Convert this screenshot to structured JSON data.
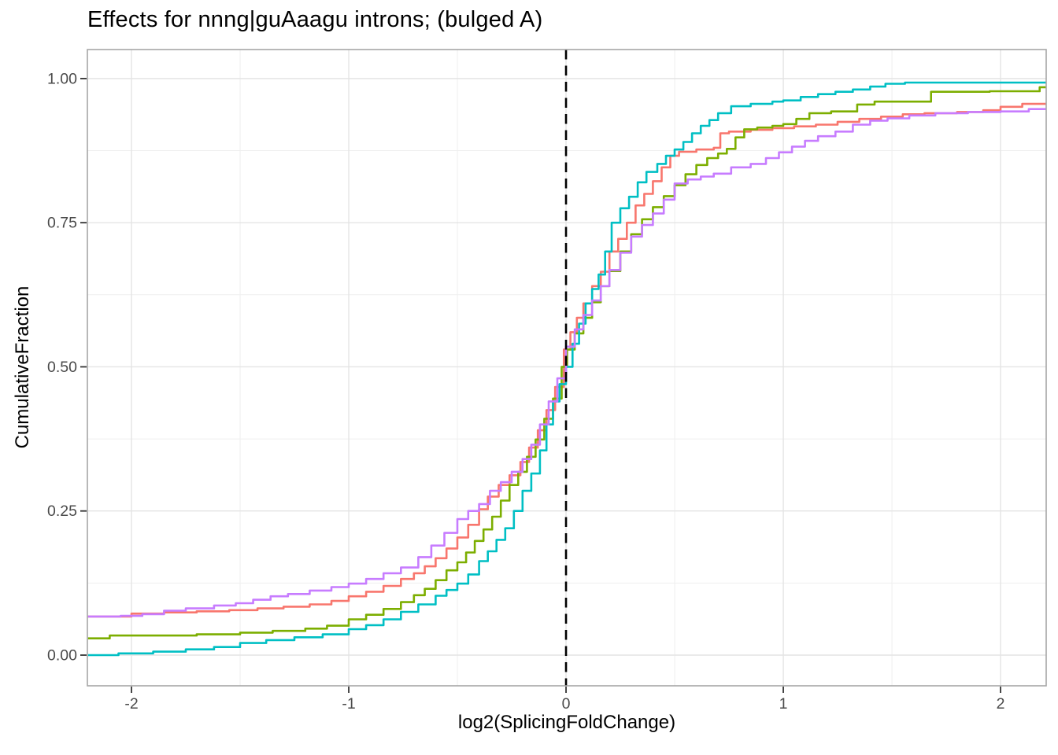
{
  "title": "Effects for nnng|guAaagu introns; (bulged A)",
  "chart_data": {
    "type": "line",
    "subtype": "ecdf_step",
    "title": "Effects for nnng|guAaagu introns; (bulged A)",
    "xlabel": "log2(SplicingFoldChange)",
    "ylabel": "CumulativeFraction",
    "xlim": [
      -2.203,
      2.21
    ],
    "ylim": [
      -0.0532,
      1.0503
    ],
    "grid": true,
    "legend_position": "none",
    "x_ticks": {
      "values": [
        -2,
        -1,
        0,
        1,
        2
      ],
      "labels": [
        "-2",
        "-1",
        "0",
        "1",
        "2"
      ]
    },
    "y_ticks": {
      "values": [
        0,
        0.25,
        0.5,
        0.75,
        1
      ],
      "labels": [
        "0.00",
        "0.25",
        "0.50",
        "0.75",
        "1.00"
      ]
    },
    "x_minor": [
      -1.5,
      -0.5,
      0.5,
      1.5
    ],
    "y_minor": [
      0.125,
      0.375,
      0.625,
      0.875
    ],
    "vline": {
      "x": 0,
      "style": "dashed",
      "color": "#000000"
    },
    "series": [
      {
        "name": "salmon",
        "color": "#F8766D",
        "points": [
          [
            -2.2,
            0.067
          ],
          [
            -2.0,
            0.072
          ],
          [
            -1.85,
            0.074
          ],
          [
            -1.7,
            0.076
          ],
          [
            -1.55,
            0.078
          ],
          [
            -1.42,
            0.081
          ],
          [
            -1.3,
            0.084
          ],
          [
            -1.18,
            0.088
          ],
          [
            -1.08,
            0.094
          ],
          [
            -1.0,
            0.102
          ],
          [
            -0.92,
            0.11
          ],
          [
            -0.84,
            0.12
          ],
          [
            -0.76,
            0.132
          ],
          [
            -0.7,
            0.142
          ],
          [
            -0.65,
            0.154
          ],
          [
            -0.6,
            0.168
          ],
          [
            -0.55,
            0.185
          ],
          [
            -0.5,
            0.204
          ],
          [
            -0.45,
            0.226
          ],
          [
            -0.4,
            0.253
          ],
          [
            -0.36,
            0.275
          ],
          [
            -0.31,
            0.295
          ],
          [
            -0.26,
            0.312
          ],
          [
            -0.21,
            0.335
          ],
          [
            -0.17,
            0.36
          ],
          [
            -0.13,
            0.39
          ],
          [
            -0.09,
            0.425
          ],
          [
            -0.05,
            0.465
          ],
          [
            -0.01,
            0.53
          ],
          [
            0.02,
            0.56
          ],
          [
            0.05,
            0.585
          ],
          [
            0.08,
            0.61
          ],
          [
            0.12,
            0.64
          ],
          [
            0.16,
            0.665
          ],
          [
            0.2,
            0.7
          ],
          [
            0.24,
            0.722
          ],
          [
            0.28,
            0.75
          ],
          [
            0.32,
            0.78
          ],
          [
            0.36,
            0.8
          ],
          [
            0.4,
            0.822
          ],
          [
            0.44,
            0.846
          ],
          [
            0.48,
            0.866
          ],
          [
            0.52,
            0.873
          ],
          [
            0.6,
            0.877
          ],
          [
            0.68,
            0.88
          ],
          [
            0.71,
            0.905
          ],
          [
            0.75,
            0.908
          ],
          [
            0.85,
            0.911
          ],
          [
            0.95,
            0.914
          ],
          [
            1.05,
            0.917
          ],
          [
            1.15,
            0.92
          ],
          [
            1.25,
            0.925
          ],
          [
            1.35,
            0.93
          ],
          [
            1.45,
            0.934
          ],
          [
            1.55,
            0.938
          ],
          [
            1.65,
            0.94
          ],
          [
            1.8,
            0.942
          ],
          [
            1.92,
            0.945
          ],
          [
            2.0,
            0.951
          ],
          [
            2.1,
            0.956
          ],
          [
            2.21,
            0.957
          ]
        ]
      },
      {
        "name": "green",
        "color": "#7CAE00",
        "points": [
          [
            -2.2,
            0.029
          ],
          [
            -2.1,
            0.034
          ],
          [
            -1.7,
            0.036
          ],
          [
            -1.5,
            0.039
          ],
          [
            -1.35,
            0.042
          ],
          [
            -1.2,
            0.046
          ],
          [
            -1.1,
            0.051
          ],
          [
            -1.0,
            0.062
          ],
          [
            -0.92,
            0.07
          ],
          [
            -0.84,
            0.08
          ],
          [
            -0.76,
            0.092
          ],
          [
            -0.7,
            0.104
          ],
          [
            -0.65,
            0.115
          ],
          [
            -0.6,
            0.13
          ],
          [
            -0.55,
            0.147
          ],
          [
            -0.5,
            0.161
          ],
          [
            -0.46,
            0.178
          ],
          [
            -0.42,
            0.198
          ],
          [
            -0.38,
            0.218
          ],
          [
            -0.34,
            0.24
          ],
          [
            -0.3,
            0.268
          ],
          [
            -0.26,
            0.295
          ],
          [
            -0.22,
            0.318
          ],
          [
            -0.18,
            0.344
          ],
          [
            -0.14,
            0.374
          ],
          [
            -0.1,
            0.41
          ],
          [
            -0.06,
            0.445
          ],
          [
            -0.02,
            0.5
          ],
          [
            0.005,
            0.53
          ],
          [
            0.04,
            0.558
          ],
          [
            0.08,
            0.585
          ],
          [
            0.12,
            0.612
          ],
          [
            0.16,
            0.64
          ],
          [
            0.2,
            0.666
          ],
          [
            0.25,
            0.7
          ],
          [
            0.3,
            0.73
          ],
          [
            0.35,
            0.756
          ],
          [
            0.4,
            0.777
          ],
          [
            0.45,
            0.796
          ],
          [
            0.5,
            0.815
          ],
          [
            0.55,
            0.834
          ],
          [
            0.6,
            0.85
          ],
          [
            0.65,
            0.862
          ],
          [
            0.7,
            0.87
          ],
          [
            0.74,
            0.878
          ],
          [
            0.78,
            0.898
          ],
          [
            0.82,
            0.912
          ],
          [
            0.88,
            0.915
          ],
          [
            0.95,
            0.918
          ],
          [
            1.0,
            0.921
          ],
          [
            1.06,
            0.93
          ],
          [
            1.12,
            0.94
          ],
          [
            1.22,
            0.943
          ],
          [
            1.34,
            0.955
          ],
          [
            1.42,
            0.96
          ],
          [
            1.68,
            0.977
          ],
          [
            1.95,
            0.978
          ],
          [
            2.18,
            0.985
          ],
          [
            2.21,
            0.985
          ]
        ]
      },
      {
        "name": "teal",
        "color": "#00BFC4",
        "points": [
          [
            -2.2,
            0.0
          ],
          [
            -2.06,
            0.003
          ],
          [
            -1.9,
            0.006
          ],
          [
            -1.75,
            0.01
          ],
          [
            -1.62,
            0.014
          ],
          [
            -1.5,
            0.021
          ],
          [
            -1.38,
            0.026
          ],
          [
            -1.25,
            0.031
          ],
          [
            -1.12,
            0.036
          ],
          [
            -1.0,
            0.045
          ],
          [
            -0.92,
            0.052
          ],
          [
            -0.84,
            0.062
          ],
          [
            -0.76,
            0.075
          ],
          [
            -0.68,
            0.088
          ],
          [
            -0.6,
            0.103
          ],
          [
            -0.55,
            0.113
          ],
          [
            -0.5,
            0.124
          ],
          [
            -0.45,
            0.14
          ],
          [
            -0.4,
            0.163
          ],
          [
            -0.36,
            0.18
          ],
          [
            -0.32,
            0.2
          ],
          [
            -0.28,
            0.22
          ],
          [
            -0.24,
            0.25
          ],
          [
            -0.2,
            0.285
          ],
          [
            -0.16,
            0.315
          ],
          [
            -0.12,
            0.355
          ],
          [
            -0.09,
            0.4
          ],
          [
            -0.06,
            0.44
          ],
          [
            -0.03,
            0.47
          ],
          [
            0.0,
            0.5
          ],
          [
            0.03,
            0.54
          ],
          [
            0.06,
            0.575
          ],
          [
            0.09,
            0.61
          ],
          [
            0.12,
            0.635
          ],
          [
            0.15,
            0.66
          ],
          [
            0.18,
            0.7
          ],
          [
            0.21,
            0.75
          ],
          [
            0.25,
            0.775
          ],
          [
            0.29,
            0.795
          ],
          [
            0.33,
            0.82
          ],
          [
            0.37,
            0.838
          ],
          [
            0.42,
            0.852
          ],
          [
            0.46,
            0.866
          ],
          [
            0.5,
            0.877
          ],
          [
            0.54,
            0.89
          ],
          [
            0.58,
            0.905
          ],
          [
            0.62,
            0.918
          ],
          [
            0.66,
            0.928
          ],
          [
            0.7,
            0.94
          ],
          [
            0.76,
            0.952
          ],
          [
            0.85,
            0.956
          ],
          [
            0.95,
            0.96
          ],
          [
            1.0,
            0.962
          ],
          [
            1.08,
            0.968
          ],
          [
            1.16,
            0.973
          ],
          [
            1.24,
            0.977
          ],
          [
            1.32,
            0.981
          ],
          [
            1.4,
            0.986
          ],
          [
            1.47,
            0.991
          ],
          [
            1.56,
            0.993
          ],
          [
            2.21,
            0.993
          ]
        ]
      },
      {
        "name": "purple",
        "color": "#C77CFF",
        "points": [
          [
            -2.2,
            0.067
          ],
          [
            -2.05,
            0.068
          ],
          [
            -1.95,
            0.071
          ],
          [
            -1.85,
            0.077
          ],
          [
            -1.75,
            0.081
          ],
          [
            -1.62,
            0.086
          ],
          [
            -1.52,
            0.09
          ],
          [
            -1.44,
            0.096
          ],
          [
            -1.36,
            0.102
          ],
          [
            -1.28,
            0.106
          ],
          [
            -1.18,
            0.112
          ],
          [
            -1.08,
            0.118
          ],
          [
            -1.0,
            0.124
          ],
          [
            -0.92,
            0.132
          ],
          [
            -0.84,
            0.142
          ],
          [
            -0.76,
            0.152
          ],
          [
            -0.68,
            0.17
          ],
          [
            -0.62,
            0.19
          ],
          [
            -0.56,
            0.212
          ],
          [
            -0.5,
            0.236
          ],
          [
            -0.45,
            0.25
          ],
          [
            -0.4,
            0.262
          ],
          [
            -0.35,
            0.285
          ],
          [
            -0.3,
            0.3
          ],
          [
            -0.25,
            0.318
          ],
          [
            -0.2,
            0.34
          ],
          [
            -0.16,
            0.365
          ],
          [
            -0.12,
            0.4
          ],
          [
            -0.08,
            0.44
          ],
          [
            -0.04,
            0.48
          ],
          [
            0.0,
            0.535
          ],
          [
            0.04,
            0.565
          ],
          [
            0.08,
            0.59
          ],
          [
            0.12,
            0.615
          ],
          [
            0.16,
            0.64
          ],
          [
            0.2,
            0.668
          ],
          [
            0.25,
            0.698
          ],
          [
            0.3,
            0.726
          ],
          [
            0.35,
            0.746
          ],
          [
            0.4,
            0.766
          ],
          [
            0.45,
            0.79
          ],
          [
            0.5,
            0.818
          ],
          [
            0.56,
            0.825
          ],
          [
            0.62,
            0.83
          ],
          [
            0.68,
            0.835
          ],
          [
            0.76,
            0.846
          ],
          [
            0.85,
            0.852
          ],
          [
            0.92,
            0.862
          ],
          [
            0.98,
            0.872
          ],
          [
            1.04,
            0.882
          ],
          [
            1.1,
            0.892
          ],
          [
            1.16,
            0.9
          ],
          [
            1.24,
            0.908
          ],
          [
            1.32,
            0.92
          ],
          [
            1.4,
            0.927
          ],
          [
            1.48,
            0.931
          ],
          [
            1.58,
            0.936
          ],
          [
            1.7,
            0.94
          ],
          [
            1.85,
            0.942
          ],
          [
            2.0,
            0.943
          ],
          [
            2.13,
            0.947
          ],
          [
            2.21,
            0.947
          ]
        ]
      }
    ]
  },
  "style_colors": {
    "background": "#FFFFFF",
    "panel_border": "#A6A6A6",
    "grid_major": "#E4E4E4",
    "grid_minor": "#EFEFEF",
    "tick_mark": "#333333",
    "tick_label": "#4A4A4A",
    "text": "#000000"
  }
}
